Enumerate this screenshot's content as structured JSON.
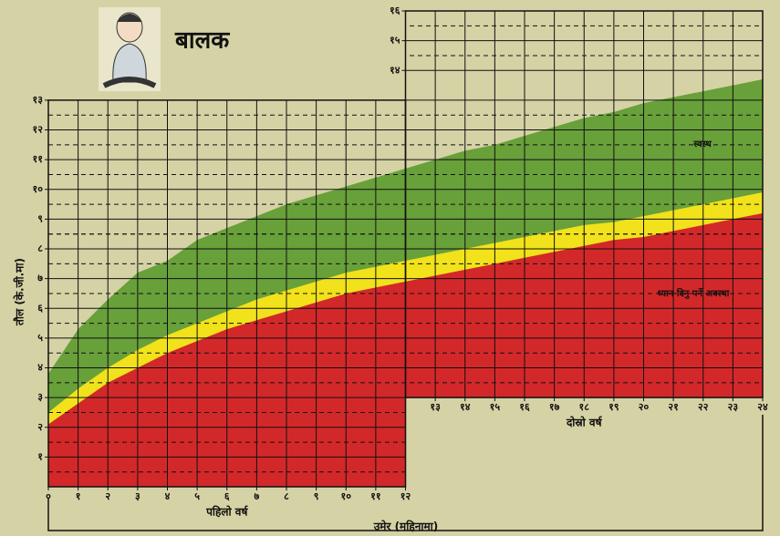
{
  "chart_data": {
    "type": "area",
    "title": "बालक",
    "ylabel": "तौल (के.जी.मा)",
    "xlabel": "उमेर (महिनामा)",
    "xlim": [
      0,
      24
    ],
    "ylim": [
      0,
      16
    ],
    "grid": true,
    "x": [
      0,
      1,
      2,
      3,
      4,
      5,
      6,
      7,
      8,
      9,
      10,
      11,
      12,
      13,
      14,
      15,
      16,
      17,
      18,
      19,
      20,
      21,
      22,
      23,
      24
    ],
    "series": [
      {
        "color": "#68a03a",
        "values": [
          3.8,
          5.3,
          6.3,
          7.2,
          7.6,
          8.3,
          8.7,
          9.1,
          9.5,
          9.8,
          10.1,
          10.4,
          10.7,
          11.0,
          11.3,
          11.5,
          11.8,
          12.1,
          12.4,
          12.6,
          12.9,
          13.1,
          13.3,
          13.5,
          13.7
        ]
      },
      {
        "color": "#f1e21b",
        "values": [
          2.5,
          3.3,
          4.0,
          4.6,
          5.1,
          5.5,
          5.9,
          6.3,
          6.6,
          6.9,
          7.2,
          7.4,
          7.6,
          7.8,
          8.0,
          8.2,
          8.4,
          8.6,
          8.8,
          8.9,
          9.1,
          9.3,
          9.5,
          9.7,
          9.9
        ]
      },
      {
        "color": "#d3282a",
        "values": [
          2.1,
          2.8,
          3.5,
          4.0,
          4.5,
          4.9,
          5.3,
          5.6,
          5.9,
          6.2,
          6.5,
          6.7,
          6.9,
          7.1,
          7.3,
          7.5,
          7.7,
          7.9,
          8.1,
          8.3,
          8.4,
          8.6,
          8.8,
          9.0,
          9.2
        ]
      }
    ],
    "panels": [
      {
        "xlabel": "पहिलो वर्ष",
        "xlim": [
          0,
          12
        ],
        "ylim": [
          0,
          13
        ],
        "xticks": [
          {
            "value": 0,
            "label": "०"
          },
          {
            "value": 1,
            "label": "१"
          },
          {
            "value": 2,
            "label": "२"
          },
          {
            "value": 3,
            "label": "३"
          },
          {
            "value": 4,
            "label": "४"
          },
          {
            "value": 5,
            "label": "५"
          },
          {
            "value": 6,
            "label": "६"
          },
          {
            "value": 7,
            "label": "७"
          },
          {
            "value": 8,
            "label": "८"
          },
          {
            "value": 9,
            "label": "९"
          },
          {
            "value": 10,
            "label": "१०"
          },
          {
            "value": 11,
            "label": "११"
          },
          {
            "value": 12,
            "label": "१२"
          }
        ],
        "yticks": [
          {
            "value": 1,
            "label": "१"
          },
          {
            "value": 2,
            "label": "२"
          },
          {
            "value": 3,
            "label": "३"
          },
          {
            "value": 4,
            "label": "४"
          },
          {
            "value": 5,
            "label": "५"
          },
          {
            "value": 6,
            "label": "६"
          },
          {
            "value": 7,
            "label": "७"
          },
          {
            "value": 8,
            "label": "८"
          },
          {
            "value": 9,
            "label": "९"
          },
          {
            "value": 10,
            "label": "१०"
          },
          {
            "value": 11,
            "label": "११"
          },
          {
            "value": 12,
            "label": "१२"
          },
          {
            "value": 13,
            "label": "१३"
          }
        ]
      },
      {
        "xlabel": "दोस्रो वर्ष",
        "xlim": [
          12,
          24
        ],
        "ylim": [
          3,
          16
        ],
        "xticks": [
          {
            "value": 13,
            "label": "१३"
          },
          {
            "value": 14,
            "label": "१४"
          },
          {
            "value": 15,
            "label": "१५"
          },
          {
            "value": 16,
            "label": "१६"
          },
          {
            "value": 17,
            "label": "१७"
          },
          {
            "value": 18,
            "label": "१८"
          },
          {
            "value": 19,
            "label": "१९"
          },
          {
            "value": 20,
            "label": "२०"
          },
          {
            "value": 21,
            "label": "२१"
          },
          {
            "value": 22,
            "label": "२२"
          },
          {
            "value": 23,
            "label": "२३"
          },
          {
            "value": 24,
            "label": "२४"
          }
        ],
        "yticks": [
          {
            "value": 14,
            "label": "१४"
          },
          {
            "value": 15,
            "label": "१५"
          },
          {
            "value": 16,
            "label": "१६"
          }
        ]
      }
    ],
    "annotations": [
      "स्वस्थ",
      "ध्यान दिनु पर्ने अवस्था"
    ]
  }
}
